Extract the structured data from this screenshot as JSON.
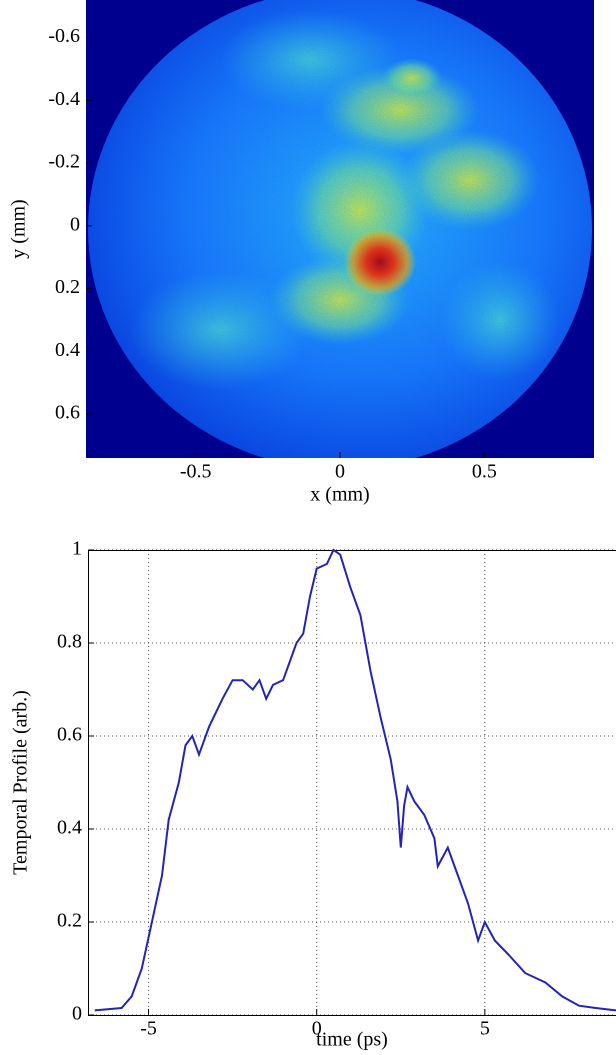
{
  "chart_data": [
    {
      "type": "heatmap",
      "xlabel": "x (mm)",
      "ylabel": "y (mm)",
      "xlim": [
        -0.88,
        0.88
      ],
      "ylim": [
        -0.72,
        0.74
      ],
      "xticks": [
        -0.5,
        0,
        0.5
      ],
      "yticks": [
        -0.6,
        -0.4,
        -0.2,
        0,
        0.2,
        0.4,
        0.6
      ],
      "y_reversed": true
    },
    {
      "type": "line",
      "xlabel": "time (ps)",
      "ylabel": "Temporal Profile (arb.)",
      "xlim": [
        -6.8,
        8.9
      ],
      "ylim": [
        0,
        1
      ],
      "xticks": [
        -5,
        0,
        5
      ],
      "yticks": [
        0,
        0.2,
        0.4,
        0.6,
        0.8,
        1
      ],
      "grid": true,
      "color": "#2424b4",
      "x": [
        -6.6,
        -5.8,
        -5.5,
        -5.2,
        -4.9,
        -4.6,
        -4.4,
        -4.1,
        -3.9,
        -3.7,
        -3.5,
        -3.2,
        -2.8,
        -2.5,
        -2.2,
        -1.9,
        -1.7,
        -1.5,
        -1.3,
        -1.0,
        -0.8,
        -0.6,
        -0.4,
        -0.2,
        0.0,
        0.3,
        0.5,
        0.7,
        1.0,
        1.3,
        1.6,
        1.9,
        2.2,
        2.4,
        2.5,
        2.6,
        2.7,
        2.9,
        3.2,
        3.5,
        3.6,
        3.9,
        4.2,
        4.5,
        4.8,
        5.0,
        5.3,
        5.7,
        6.2,
        6.8,
        7.3,
        7.8,
        8.3,
        8.9
      ],
      "values": [
        0.01,
        0.015,
        0.04,
        0.1,
        0.2,
        0.3,
        0.42,
        0.5,
        0.58,
        0.6,
        0.56,
        0.62,
        0.68,
        0.72,
        0.72,
        0.7,
        0.72,
        0.68,
        0.71,
        0.72,
        0.76,
        0.8,
        0.82,
        0.9,
        0.96,
        0.97,
        1.0,
        0.99,
        0.92,
        0.86,
        0.74,
        0.64,
        0.55,
        0.46,
        0.36,
        0.45,
        0.49,
        0.46,
        0.43,
        0.38,
        0.32,
        0.36,
        0.3,
        0.24,
        0.16,
        0.2,
        0.16,
        0.13,
        0.09,
        0.07,
        0.04,
        0.02,
        0.015,
        0.01
      ]
    }
  ]
}
